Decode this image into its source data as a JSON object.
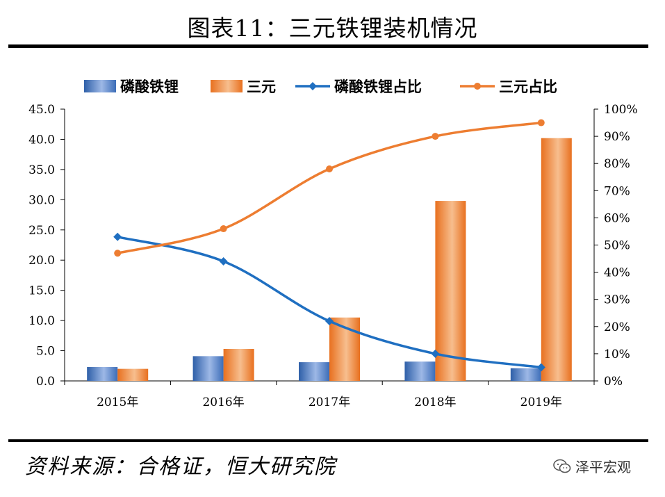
{
  "header": {
    "title": "图表11：三元铁锂装机情况"
  },
  "footer": {
    "source": "资料来源：合格证，恒大研究院",
    "brand": "泽平宏观"
  },
  "chart_data": {
    "type": "bar",
    "categories": [
      "2015年",
      "2016年",
      "2017年",
      "2018年",
      "2019年"
    ],
    "series": [
      {
        "name": "磷酸铁锂",
        "type": "bar",
        "axis": "left",
        "values": [
          2.3,
          4.1,
          3.1,
          3.2,
          2.1
        ],
        "color": "#4A7EC8"
      },
      {
        "name": "三元",
        "type": "bar",
        "axis": "left",
        "values": [
          2.0,
          5.3,
          10.5,
          29.8,
          40.2
        ],
        "color": "#ED7D31"
      },
      {
        "name": "磷酸铁锂占比",
        "type": "line",
        "axis": "right",
        "values": [
          0.53,
          0.44,
          0.22,
          0.1,
          0.05
        ],
        "color": "#1F6FC1",
        "marker": "diamond"
      },
      {
        "name": "三元占比",
        "type": "line",
        "axis": "right",
        "values": [
          0.47,
          0.56,
          0.78,
          0.9,
          0.95
        ],
        "color": "#ED7D31",
        "marker": "circle"
      }
    ],
    "y_left": {
      "min": 0,
      "max": 45,
      "step": 5,
      "ticks": [
        "0.0",
        "5.0",
        "10.0",
        "15.0",
        "20.0",
        "25.0",
        "30.0",
        "35.0",
        "40.0",
        "45.0"
      ]
    },
    "y_right": {
      "min": 0,
      "max": 1,
      "step": 0.1,
      "ticks": [
        "0%",
        "10%",
        "20%",
        "30%",
        "40%",
        "50%",
        "60%",
        "70%",
        "80%",
        "90%",
        "100%"
      ]
    },
    "legend": "top",
    "grid": false
  }
}
